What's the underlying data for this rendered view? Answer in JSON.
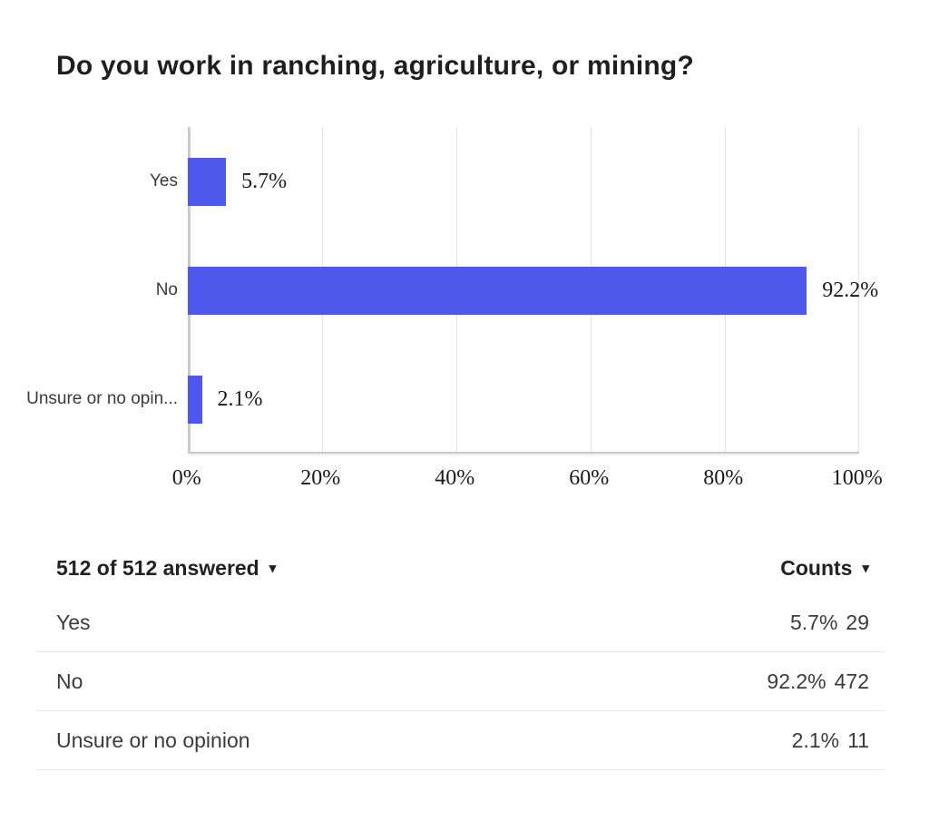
{
  "title": "Do you work in ranching, agriculture, or mining?",
  "colors": {
    "bar": "#4e58ec",
    "gridline": "#e3e3e3",
    "axis_line": "#c9c9c9",
    "y_axis_line": "#cccccc",
    "divider": "#e7e7e7"
  },
  "chart_data": {
    "type": "bar",
    "orientation": "horizontal",
    "title": "Do you work in ranching, agriculture, or mining?",
    "categories": [
      "Yes",
      "No",
      "Unsure or no opin..."
    ],
    "values": [
      5.7,
      92.2,
      2.1
    ],
    "value_labels": [
      "5.7%",
      "92.2%",
      "2.1%"
    ],
    "xlabel": "",
    "ylabel": "",
    "xlim": [
      0,
      100
    ],
    "x_ticks": [
      "0%",
      "20%",
      "40%",
      "60%",
      "80%",
      "100%"
    ],
    "grid": "vertical-only",
    "legend": "none"
  },
  "table": {
    "answered_label": "512 of 512 answered",
    "answered_caret": "▾",
    "counts_label": "Counts",
    "counts_caret": "▾",
    "rows": [
      {
        "label": "Yes",
        "percent": "5.7%",
        "count": "29"
      },
      {
        "label": "No",
        "percent": "92.2%",
        "count": "472"
      },
      {
        "label": "Unsure or no opinion",
        "percent": "2.1%",
        "count": "11"
      }
    ]
  }
}
